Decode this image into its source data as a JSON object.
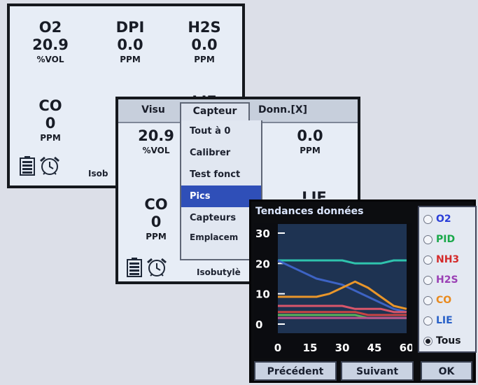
{
  "screen_main": {
    "gases": [
      {
        "name": "O2",
        "value": "20.9",
        "unit": "%VOL"
      },
      {
        "name": "DPI",
        "value": "0.0",
        "unit": "PPM"
      },
      {
        "name": "H2S",
        "value": "0.0",
        "unit": "PPM"
      },
      {
        "name": "CO",
        "value": "0",
        "unit": "PPM"
      }
    ],
    "partial_label": "LIE",
    "status_text": "Isob"
  },
  "screen_menu": {
    "menubar": {
      "visu": "Visu",
      "capteur": "Capteur",
      "donn": "Donn.[X]"
    },
    "dropdown": [
      "Tout à 0",
      "Calibrer",
      "Test fonct",
      "Pics",
      "Capteurs",
      "Emplacem"
    ],
    "selected_item": "Pics",
    "readings": [
      {
        "value": "20.9",
        "unit": "%VOL"
      },
      {
        "value": "0.0",
        "unit": "PPM"
      }
    ],
    "co": {
      "name": "CO",
      "value": "0",
      "unit": "PPM"
    },
    "partial_label": "LIE",
    "status_text": "Isobutylè"
  },
  "screen_trend": {
    "title": "Tendances données",
    "radios": [
      {
        "label": "O2",
        "color": "#2a3ed8",
        "selected": false
      },
      {
        "label": "PID",
        "color": "#1aa84a",
        "selected": false
      },
      {
        "label": "NH3",
        "color": "#d42a2a",
        "selected": false
      },
      {
        "label": "H2S",
        "color": "#9a3fb4",
        "selected": false
      },
      {
        "label": "CO",
        "color": "#e98a1e",
        "selected": false
      },
      {
        "label": "LIE",
        "color": "#2860c8",
        "selected": false
      },
      {
        "label": "Tous",
        "color": "#15181f",
        "selected": true
      }
    ],
    "buttons": {
      "prev": "Précédent",
      "next": "Suivant",
      "ok": "OK"
    }
  },
  "chart_data": {
    "type": "line",
    "title": "Tendances données",
    "xlabel": "",
    "ylabel": "",
    "x_ticks": [
      "0",
      "15",
      "30",
      "45",
      "60"
    ],
    "y_ticks": [
      "0",
      "10",
      "20",
      "30"
    ],
    "xlim": [
      0,
      60
    ],
    "ylim": [
      -3,
      33
    ],
    "x": [
      0,
      6,
      12,
      18,
      24,
      30,
      36,
      42,
      48,
      54,
      60
    ],
    "series": [
      {
        "color": "#2fc3ad",
        "values": [
          21,
          21,
          21,
          21,
          21,
          21,
          20,
          20,
          20,
          21,
          21
        ]
      },
      {
        "color": "#3d63c4",
        "values": [
          21,
          19,
          17,
          15,
          14,
          13,
          11,
          9,
          7,
          5,
          4
        ]
      },
      {
        "color": "#e9962a",
        "values": [
          9,
          9,
          9,
          9,
          10,
          12,
          14,
          12,
          9,
          6,
          5
        ]
      },
      {
        "color": "#d8566a",
        "values": [
          6,
          6,
          6,
          6,
          6,
          6,
          5,
          5,
          5,
          4,
          4
        ]
      },
      {
        "color": "#c84444",
        "values": [
          4,
          4,
          4,
          4,
          4,
          4,
          4,
          3,
          3,
          3,
          3
        ]
      },
      {
        "color": "#57b35a",
        "values": [
          3,
          3,
          3,
          3,
          3,
          3,
          3,
          2,
          2,
          2,
          2
        ]
      },
      {
        "color": "#b3548e",
        "values": [
          2,
          2,
          2,
          2,
          2,
          2,
          2,
          2,
          2,
          2,
          2
        ]
      }
    ]
  }
}
